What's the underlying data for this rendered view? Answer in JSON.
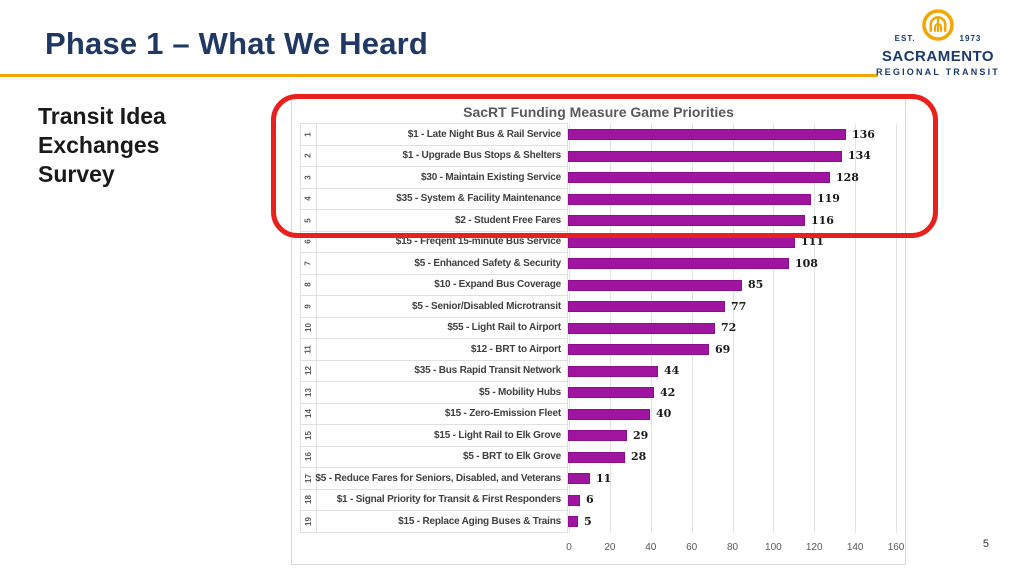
{
  "slide": {
    "title": "Phase 1 – What We Heard",
    "title_color": "#1F3864",
    "accent_gold": "#F2A705",
    "caption_lines": [
      "Transit Idea",
      "Exchanges",
      "Survey"
    ],
    "page_number": "5"
  },
  "logo": {
    "est_label": "EST.",
    "year_label": "1973",
    "name_line1": "SACRAMENTO",
    "name_line2": "REGIONAL TRANSIT",
    "gold": "#F2A705",
    "navy": "#1B3A6B"
  },
  "chart_data": {
    "type": "bar",
    "orientation": "horizontal",
    "title": "SacRT Funding Measure Game Priorities",
    "ranks": [
      "1",
      "2",
      "3",
      "4",
      "5",
      "6",
      "7",
      "8",
      "9",
      "10",
      "11",
      "12",
      "13",
      "14",
      "15",
      "16",
      "17",
      "18",
      "19"
    ],
    "categories": [
      "$1 - Late Night Bus & Rail Service",
      "$1 - Upgrade Bus Stops & Shelters",
      "$30 - Maintain Existing Service",
      "$35 - System & Facility Maintenance",
      "$2 - Student Free Fares",
      "$15 - Freqent 15-minute Bus Service",
      "$5 - Enhanced Safety & Security",
      "$10 - Expand Bus Coverage",
      "$5 - Senior/Disabled Microtransit",
      "$55 - Light Rail to Airport",
      "$12 - BRT to Airport",
      "$35 - Bus Rapid Transit Network",
      "$5 - Mobility Hubs",
      "$15 - Zero-Emission Fleet",
      "$15 - Light Rail to Elk Grove",
      "$5 - BRT to Elk Grove",
      "$5 - Reduce Fares for Seniors, Disabled, and Veterans",
      "$1 - Signal Priority for Transit & First Responders",
      "$15 - Replace Aging Buses & Trains"
    ],
    "values": [
      136,
      134,
      128,
      119,
      116,
      111,
      108,
      85,
      77,
      72,
      69,
      44,
      42,
      40,
      29,
      28,
      11,
      6,
      5
    ],
    "xlim": [
      0,
      160
    ],
    "x_ticks": [
      0,
      20,
      40,
      60,
      80,
      100,
      120,
      140,
      160
    ],
    "grid": true,
    "legend": "none",
    "bar_color": "#A0159F",
    "bar_border_color": "#8B0E8B",
    "highlight": {
      "rows": [
        1,
        2,
        3,
        4,
        5
      ],
      "color": "#E8201E"
    }
  }
}
